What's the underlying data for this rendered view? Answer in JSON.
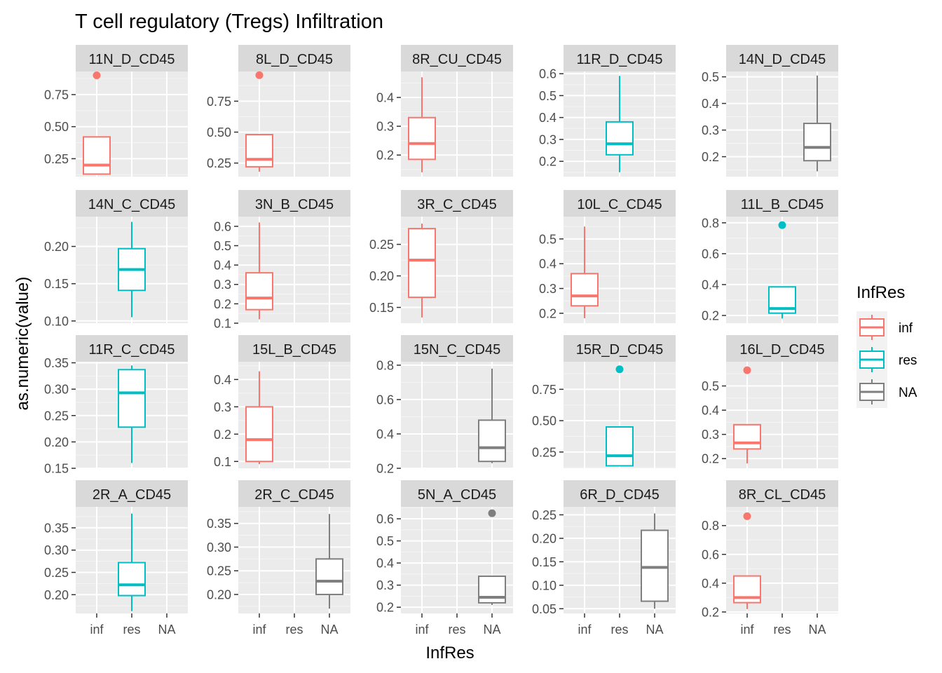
{
  "chart_data": {
    "type": "boxplot",
    "title": "T cell regulatory (Tregs) Infiltration",
    "xlabel": "InfRes",
    "ylabel": "as.numeric(value)",
    "categories": [
      "inf",
      "res",
      "NA"
    ],
    "legend": {
      "title": "InfRes",
      "position": "right",
      "entries": [
        {
          "label": "inf",
          "color": "#F8766D"
        },
        {
          "label": "res",
          "color": "#00BFC4"
        },
        {
          "label": "NA",
          "color": "#7F7F7F"
        }
      ]
    },
    "facet_layout": {
      "rows": 4,
      "cols": 5,
      "free_y": true
    },
    "panels": [
      {
        "label": "11N_D_CD45",
        "yrange": [
          0.11,
          0.93
        ],
        "yticks": [
          0.25,
          0.5,
          0.75
        ],
        "yticklabels": [
          "0.25",
          "0.50",
          "0.75"
        ],
        "box": {
          "group": "inf",
          "whisker_low": 0.13,
          "q1": 0.13,
          "median": 0.2,
          "q3": 0.42,
          "whisker_high": 0.42,
          "outliers": [
            0.9
          ]
        }
      },
      {
        "label": "8L_D_CD45",
        "yrange": [
          0.14,
          0.99
        ],
        "yticks": [
          0.25,
          0.5,
          0.75
        ],
        "yticklabels": [
          "0.25",
          "0.50",
          "0.75"
        ],
        "box": {
          "group": "inf",
          "whisker_low": 0.18,
          "q1": 0.22,
          "median": 0.28,
          "q3": 0.48,
          "whisker_high": 0.48,
          "outliers": [
            0.96
          ]
        }
      },
      {
        "label": "8R_CU_CD45",
        "yrange": [
          0.125,
          0.49
        ],
        "yticks": [
          0.2,
          0.3,
          0.4
        ],
        "yticklabels": [
          "0.2",
          "0.3",
          "0.4"
        ],
        "box": {
          "group": "inf",
          "whisker_low": 0.14,
          "q1": 0.185,
          "median": 0.24,
          "q3": 0.33,
          "whisker_high": 0.47,
          "outliers": []
        }
      },
      {
        "label": "11R_D_CD45",
        "yrange": [
          0.13,
          0.61
        ],
        "yticks": [
          0.2,
          0.3,
          0.4,
          0.5,
          0.6
        ],
        "yticklabels": [
          "0.2",
          "0.3",
          "0.4",
          "0.5",
          "0.6"
        ],
        "box": {
          "group": "res",
          "whisker_low": 0.15,
          "q1": 0.23,
          "median": 0.28,
          "q3": 0.38,
          "whisker_high": 0.59,
          "outliers": []
        }
      },
      {
        "label": "14N_D_CD45",
        "yrange": [
          0.125,
          0.52
        ],
        "yticks": [
          0.2,
          0.3,
          0.4,
          0.5
        ],
        "yticklabels": [
          "0.2",
          "0.3",
          "0.4",
          "0.5"
        ],
        "box": {
          "group": "NA",
          "whisker_low": 0.145,
          "q1": 0.185,
          "median": 0.235,
          "q3": 0.325,
          "whisker_high": 0.505,
          "outliers": []
        }
      },
      {
        "label": "14N_C_CD45",
        "yrange": [
          0.097,
          0.24
        ],
        "yticks": [
          0.1,
          0.15,
          0.2
        ],
        "yticklabels": [
          "0.10",
          "0.15",
          "0.20"
        ],
        "box": {
          "group": "res",
          "whisker_low": 0.105,
          "q1": 0.141,
          "median": 0.169,
          "q3": 0.197,
          "whisker_high": 0.233,
          "outliers": []
        }
      },
      {
        "label": "3N_B_CD45",
        "yrange": [
          0.1,
          0.65
        ],
        "yticks": [
          0.1,
          0.2,
          0.3,
          0.4,
          0.5,
          0.6
        ],
        "yticklabels": [
          "0.1",
          "0.2",
          "0.3",
          "0.4",
          "0.5",
          "0.6"
        ],
        "box": {
          "group": "inf",
          "whisker_low": 0.12,
          "q1": 0.17,
          "median": 0.23,
          "q3": 0.36,
          "whisker_high": 0.62,
          "outliers": []
        }
      },
      {
        "label": "3R_C_CD45",
        "yrange": [
          0.125,
          0.294
        ],
        "yticks": [
          0.15,
          0.2,
          0.25
        ],
        "yticklabels": [
          "0.15",
          "0.20",
          "0.25"
        ],
        "box": {
          "group": "inf",
          "whisker_low": 0.134,
          "q1": 0.166,
          "median": 0.225,
          "q3": 0.275,
          "whisker_high": 0.283,
          "outliers": []
        }
      },
      {
        "label": "10L_C_CD45",
        "yrange": [
          0.16,
          0.59
        ],
        "yticks": [
          0.2,
          0.3,
          0.4,
          0.5
        ],
        "yticklabels": [
          "0.2",
          "0.3",
          "0.4",
          "0.5"
        ],
        "box": {
          "group": "inf",
          "whisker_low": 0.18,
          "q1": 0.23,
          "median": 0.27,
          "q3": 0.36,
          "whisker_high": 0.55,
          "outliers": []
        }
      },
      {
        "label": "11L_B_CD45",
        "yrange": [
          0.15,
          0.84
        ],
        "yticks": [
          0.2,
          0.4,
          0.6,
          0.8
        ],
        "yticklabels": [
          "0.2",
          "0.4",
          "0.6",
          "0.8"
        ],
        "box": {
          "group": "res",
          "whisker_low": 0.18,
          "q1": 0.215,
          "median": 0.245,
          "q3": 0.385,
          "whisker_high": 0.385,
          "outliers": [
            0.785
          ]
        }
      },
      {
        "label": "11R_C_CD45",
        "yrange": [
          0.15,
          0.352
        ],
        "yticks": [
          0.15,
          0.2,
          0.25,
          0.3,
          0.35
        ],
        "yticklabels": [
          "0.15",
          "0.20",
          "0.25",
          "0.30",
          "0.35"
        ],
        "box": {
          "group": "res",
          "whisker_low": 0.16,
          "q1": 0.228,
          "median": 0.293,
          "q3": 0.337,
          "whisker_high": 0.345,
          "outliers": []
        }
      },
      {
        "label": "15L_B_CD45",
        "yrange": [
          0.075,
          0.465
        ],
        "yticks": [
          0.1,
          0.2,
          0.3,
          0.4
        ],
        "yticklabels": [
          "0.1",
          "0.2",
          "0.3",
          "0.4"
        ],
        "box": {
          "group": "inf",
          "whisker_low": 0.09,
          "q1": 0.1,
          "median": 0.18,
          "q3": 0.3,
          "whisker_high": 0.43,
          "outliers": []
        }
      },
      {
        "label": "15N_C_CD45",
        "yrange": [
          0.2,
          0.82
        ],
        "yticks": [
          0.2,
          0.4,
          0.6,
          0.8
        ],
        "yticklabels": [
          "0.2",
          "0.4",
          "0.6",
          "0.8"
        ],
        "box": {
          "group": "NA",
          "whisker_low": 0.23,
          "q1": 0.24,
          "median": 0.32,
          "q3": 0.48,
          "whisker_high": 0.78,
          "outliers": []
        }
      },
      {
        "label": "15R_D_CD45",
        "yrange": [
          0.12,
          0.97
        ],
        "yticks": [
          0.25,
          0.5,
          0.75
        ],
        "yticklabels": [
          "0.25",
          "0.50",
          "0.75"
        ],
        "box": {
          "group": "res",
          "whisker_low": 0.14,
          "q1": 0.14,
          "median": 0.22,
          "q3": 0.45,
          "whisker_high": 0.45,
          "outliers": [
            0.91
          ]
        }
      },
      {
        "label": "16L_D_CD45",
        "yrange": [
          0.16,
          0.6
        ],
        "yticks": [
          0.2,
          0.3,
          0.4,
          0.5
        ],
        "yticklabels": [
          "0.2",
          "0.3",
          "0.4",
          "0.5"
        ],
        "box": {
          "group": "inf",
          "whisker_low": 0.18,
          "q1": 0.24,
          "median": 0.265,
          "q3": 0.34,
          "whisker_high": 0.34,
          "outliers": [
            0.565
          ]
        }
      },
      {
        "label": "2R_A_CD45",
        "yrange": [
          0.158,
          0.397
        ],
        "yticks": [
          0.2,
          0.25,
          0.3,
          0.35
        ],
        "yticklabels": [
          "0.20",
          "0.25",
          "0.30",
          "0.35"
        ],
        "box": {
          "group": "res",
          "whisker_low": 0.163,
          "q1": 0.198,
          "median": 0.222,
          "q3": 0.272,
          "whisker_high": 0.382,
          "outliers": []
        }
      },
      {
        "label": "2R_C_CD45",
        "yrange": [
          0.16,
          0.385
        ],
        "yticks": [
          0.2,
          0.25,
          0.3,
          0.35
        ],
        "yticklabels": [
          "0.20",
          "0.25",
          "0.30",
          "0.35"
        ],
        "box": {
          "group": "NA",
          "whisker_low": 0.17,
          "q1": 0.2,
          "median": 0.228,
          "q3": 0.275,
          "whisker_high": 0.37,
          "outliers": []
        }
      },
      {
        "label": "5N_A_CD45",
        "yrange": [
          0.172,
          0.654
        ],
        "yticks": [
          0.2,
          0.3,
          0.4,
          0.5,
          0.6
        ],
        "yticklabels": [
          "0.2",
          "0.3",
          "0.4",
          "0.5",
          "0.6"
        ],
        "box": {
          "group": "NA",
          "whisker_low": 0.21,
          "q1": 0.22,
          "median": 0.245,
          "q3": 0.34,
          "whisker_high": 0.34,
          "outliers": [
            0.625
          ]
        }
      },
      {
        "label": "6R_D_CD45",
        "yrange": [
          0.04,
          0.267
        ],
        "yticks": [
          0.05,
          0.1,
          0.15,
          0.2,
          0.25
        ],
        "yticklabels": [
          "0.05",
          "0.10",
          "0.15",
          "0.20",
          "0.25"
        ],
        "box": {
          "group": "NA",
          "whisker_low": 0.05,
          "q1": 0.066,
          "median": 0.138,
          "q3": 0.217,
          "whisker_high": 0.253,
          "outliers": []
        }
      },
      {
        "label": "8R_CL_CD45",
        "yrange": [
          0.19,
          0.93
        ],
        "yticks": [
          0.2,
          0.4,
          0.6,
          0.8
        ],
        "yticklabels": [
          "0.2",
          "0.4",
          "0.6",
          "0.8"
        ],
        "box": {
          "group": "inf",
          "whisker_low": 0.22,
          "q1": 0.265,
          "median": 0.3,
          "q3": 0.45,
          "whisker_high": 0.45,
          "outliers": [
            0.865
          ]
        }
      }
    ]
  }
}
